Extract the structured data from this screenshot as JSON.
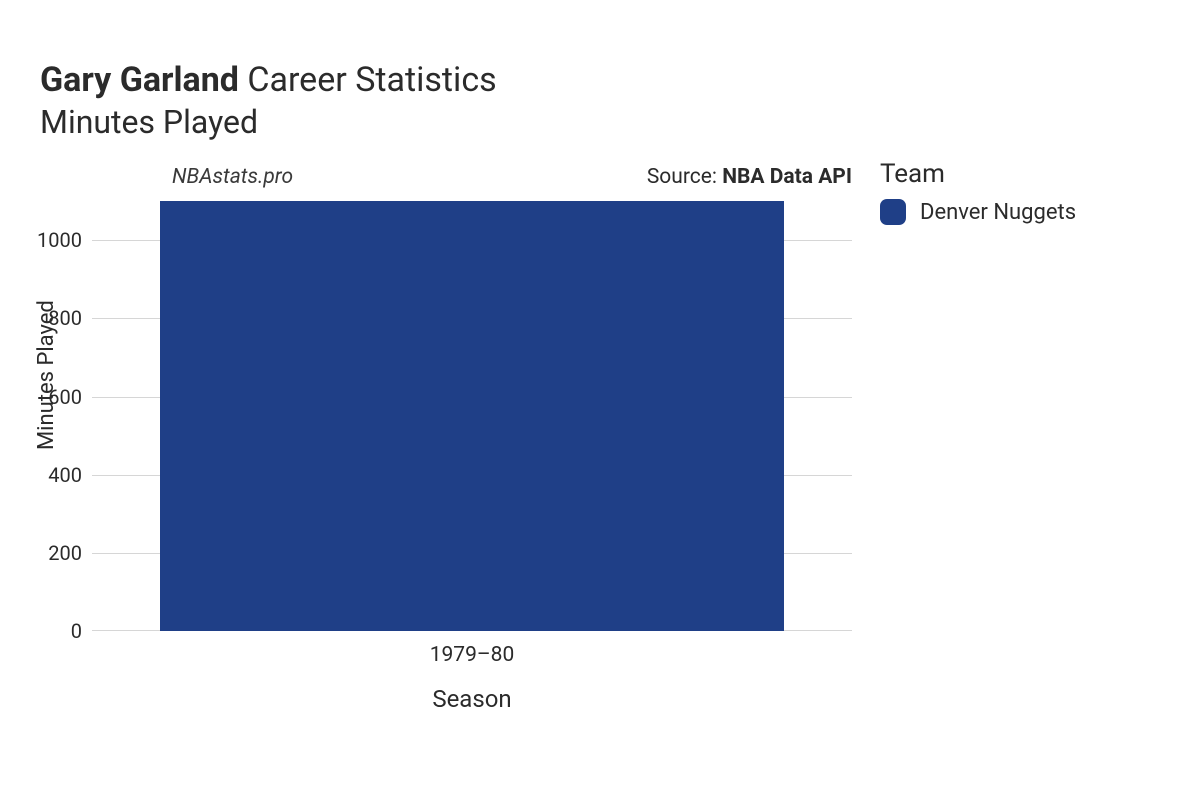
{
  "title": {
    "name": "Gary Garland",
    "suffix": "Career Statistics",
    "subtitle": "Minutes Played"
  },
  "annotations": {
    "site": "NBAstats.pro",
    "source_prefix": "Source: ",
    "source_name": "NBA Data API"
  },
  "chart": {
    "type": "bar",
    "xlabel": "Season",
    "ylabel": "Minutes Played",
    "ylim": [
      0,
      1100
    ],
    "ytick_step": 200,
    "yticks": [
      0,
      200,
      400,
      600,
      800,
      1000
    ],
    "categories": [
      "1979–80"
    ],
    "values": [
      1100
    ],
    "bar_colors": [
      "#1f3f87"
    ],
    "bar_width": 0.82,
    "background_color": "#ffffff",
    "grid_color": "#d6d6d6",
    "tick_fontsize": 20,
    "axis_label_fontsize": 24
  },
  "legend": {
    "title": "Team",
    "items": [
      {
        "label": "Denver Nuggets",
        "color": "#1f3f87"
      }
    ]
  }
}
